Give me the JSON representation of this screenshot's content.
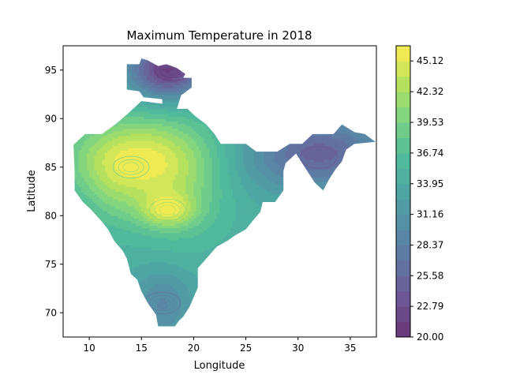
{
  "chart_data": {
    "type": "heatmap",
    "title": "Maximum Temperature in 2018",
    "xlabel": "Longitude",
    "ylabel": "Latitude",
    "xlim": [
      7.5,
      37.5
    ],
    "ylim": [
      67.5,
      97.5
    ],
    "xticks": [
      10,
      15,
      20,
      25,
      30,
      35
    ],
    "yticks": [
      70,
      75,
      80,
      85,
      90,
      95
    ],
    "colorbar": {
      "min": 20.0,
      "max": 46.5,
      "tick_values": [
        20.0,
        22.79,
        25.58,
        28.37,
        31.16,
        33.95,
        36.74,
        39.53,
        42.32,
        45.12
      ],
      "tick_labels": [
        "20.00",
        "22.79",
        "25.58",
        "28.37",
        "31.16",
        "33.95",
        "36.74",
        "39.53",
        "42.32",
        "45.12"
      ],
      "levels": 19
    },
    "colormap": "viridis",
    "alpha": 0.8,
    "grid": false,
    "regions": [
      {
        "name": "",
        "peak_temp": 45.5,
        "center": [
          17.5,
          80.6
        ]
      },
      {
        "name": "",
        "peak_temp": 43.5,
        "center": [
          14,
          85
        ]
      },
      {
        "name": "",
        "peak_temp": 24,
        "center": [
          18,
          95
        ]
      },
      {
        "name": "",
        "peak_temp": 28,
        "center": [
          32,
          86
        ]
      },
      {
        "name": "",
        "peak_temp": 31,
        "center": [
          17,
          71
        ]
      }
    ]
  }
}
